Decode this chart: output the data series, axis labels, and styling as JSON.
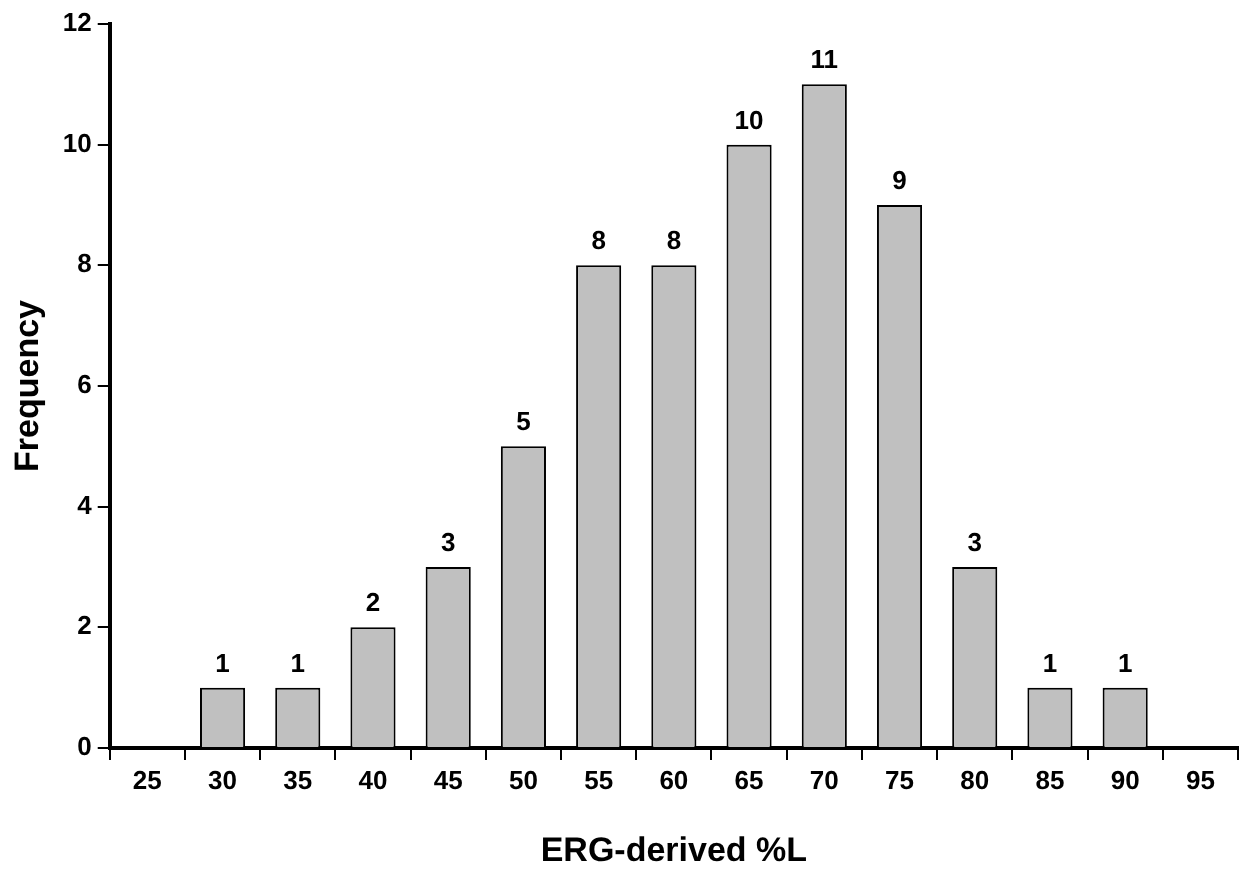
{
  "chart_data": {
    "type": "bar",
    "xlabel": "ERG-derived %L",
    "ylabel": "Frequency",
    "categories": [
      "25",
      "30",
      "35",
      "40",
      "45",
      "50",
      "55",
      "60",
      "65",
      "70",
      "75",
      "80",
      "85",
      "90",
      "95"
    ],
    "values": [
      0,
      1,
      1,
      2,
      3,
      5,
      8,
      8,
      10,
      11,
      9,
      3,
      1,
      1,
      0
    ],
    "value_labels": [
      null,
      "1",
      "1",
      "2",
      "3",
      "5",
      "8",
      "8",
      "10",
      "11",
      "9",
      "3",
      "1",
      "1",
      null
    ],
    "color": "#c0c0c0",
    "ylim": [
      0,
      12
    ],
    "yticks": [
      0,
      2,
      4,
      6,
      8,
      10,
      12
    ],
    "grid": false,
    "legend": false
  }
}
